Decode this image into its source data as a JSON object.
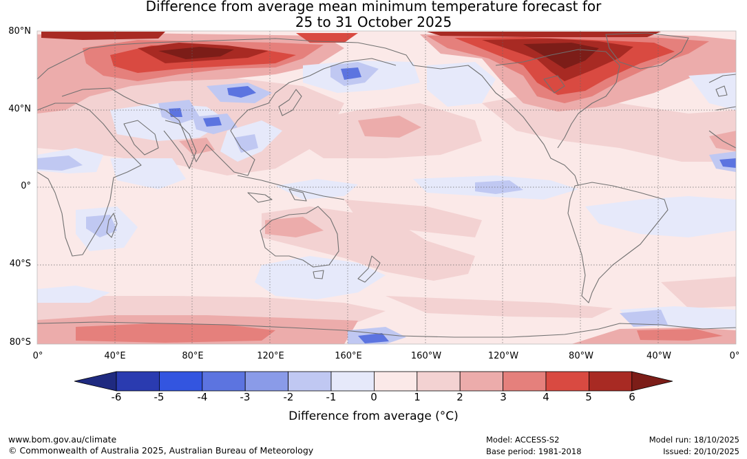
{
  "title": {
    "line1": "Difference from average mean minimum temperature forecast for",
    "line2": "25 to 31 October 2025"
  },
  "map": {
    "lat_labels": [
      "80°N",
      "40°N",
      "0°",
      "40°S",
      "80°S"
    ],
    "lon_labels": [
      "0°",
      "40°E",
      "80°E",
      "120°E",
      "160°E",
      "160°W",
      "120°W",
      "80°W",
      "40°W",
      "0°"
    ],
    "palette": {
      "neg6": "#1f2a80",
      "neg5": "#2a3bb0",
      "neg4": "#3355e0",
      "neg3": "#5c74e0",
      "neg2": "#8a9be8",
      "neg1": "#c0c8f2",
      "neg0": "#e6e9fa",
      "pos0": "#fbe9e8",
      "pos1": "#f3d2d2",
      "pos2": "#ecacab",
      "pos3": "#e5807c",
      "pos4": "#d94a41",
      "pos5": "#a82a23",
      "pos6": "#7c1d18",
      "coast": "#707070",
      "grid": "#666666"
    }
  },
  "colorbar": {
    "tick_labels": [
      "-6",
      "-5",
      "-4",
      "-3",
      "-2",
      "-1",
      "0",
      "1",
      "2",
      "3",
      "4",
      "5",
      "6"
    ],
    "title": "Difference from average (°C)"
  },
  "footer": {
    "website": "www.bom.gov.au/climate",
    "copyright": "© Commonwealth of Australia 2025, Australian Bureau of Meteorology",
    "model": "Model: ACCESS-S2",
    "base_period": "Base period: 1981-2018",
    "model_run": "Model run: 18/10/2025",
    "issued": "Issued: 20/10/2025"
  }
}
